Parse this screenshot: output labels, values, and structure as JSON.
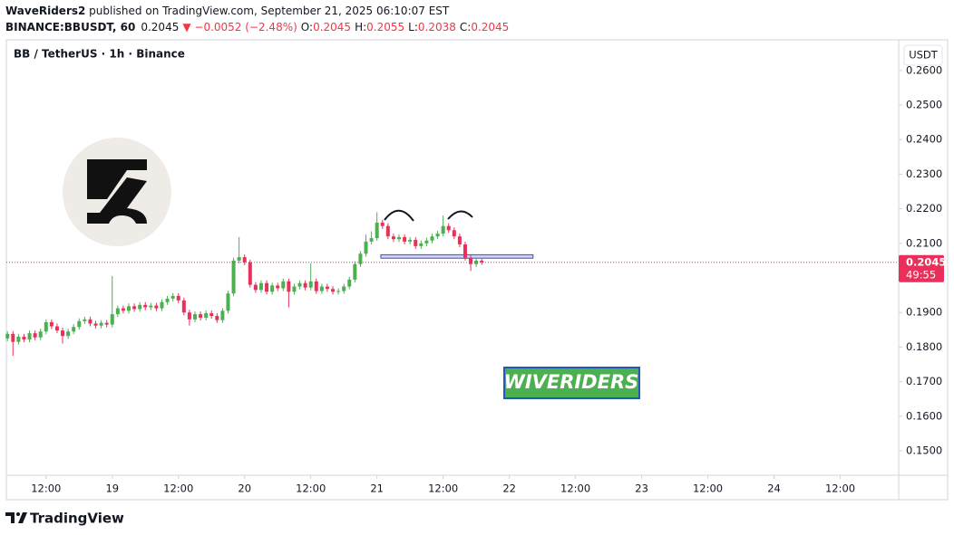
{
  "header": {
    "author": "WaveRiders2",
    "text": " published on TradingView.com, September 21, 2025 06:10:07 EST",
    "symbol": "BINANCE:BBUSDT, 60",
    "price": "0.2045",
    "change": "▼ −0.0052 (−2.48%)",
    "o_label": "O:",
    "o": "0.2045",
    "h_label": "H:",
    "h": "0.2055",
    "l_label": "L:",
    "l": "0.2038",
    "c_label": "C:",
    "c": "0.2045"
  },
  "chart_data": {
    "type": "candlestick",
    "title": "BB / TetherUS · 1h · Binance",
    "currency": "USDT",
    "up_color": "#4caf50",
    "down_color": "#e8305a",
    "x": [
      5,
      6,
      7,
      8,
      9,
      10,
      11,
      12,
      13,
      14,
      15,
      16,
      17,
      18,
      19,
      20,
      21,
      22,
      23,
      24,
      25,
      26,
      27,
      28,
      29,
      30,
      31,
      32,
      33,
      34,
      35,
      36,
      37,
      38,
      39,
      40,
      41,
      42,
      43,
      44,
      45,
      46,
      47,
      48,
      49,
      50,
      51,
      52,
      53,
      54,
      55,
      56,
      57,
      58,
      59,
      60,
      61,
      62,
      63,
      64,
      65,
      66,
      67,
      68,
      69,
      70,
      71,
      72,
      73,
      74,
      75,
      76,
      77,
      78,
      79,
      80,
      81,
      82,
      83,
      84,
      85,
      86,
      87,
      88,
      89,
      90,
      91
    ],
    "open": [
      0.1825,
      0.1838,
      0.1815,
      0.183,
      0.1822,
      0.184,
      0.1828,
      0.1845,
      0.1872,
      0.186,
      0.1848,
      0.1832,
      0.1845,
      0.1858,
      0.1875,
      0.188,
      0.1868,
      0.1862,
      0.187,
      0.1865,
      0.1895,
      0.1912,
      0.1905,
      0.1918,
      0.191,
      0.1922,
      0.1915,
      0.192,
      0.1912,
      0.193,
      0.194,
      0.1948,
      0.1935,
      0.19,
      0.188,
      0.1895,
      0.1885,
      0.1898,
      0.189,
      0.1878,
      0.1905,
      0.1955,
      0.205,
      0.206,
      0.2045,
      0.198,
      0.1965,
      0.1985,
      0.196,
      0.1978,
      0.197,
      0.199,
      0.196,
      0.1975,
      0.1985,
      0.1972,
      0.199,
      0.1962,
      0.1975,
      0.1968,
      0.196,
      0.1962,
      0.1975,
      0.1995,
      0.204,
      0.207,
      0.2105,
      0.2115,
      0.216,
      0.215,
      0.212,
      0.2112,
      0.2118,
      0.2105,
      0.211,
      0.2092,
      0.21,
      0.2108,
      0.212,
      0.2128,
      0.215,
      0.2138,
      0.212,
      0.2097,
      0.2058,
      0.204,
      0.205
    ],
    "high": [
      0.1846,
      0.1846,
      0.1838,
      0.1838,
      0.1848,
      0.1848,
      0.1853,
      0.188,
      0.188,
      0.1868,
      0.1856,
      0.1853,
      0.1866,
      0.1883,
      0.1888,
      0.1888,
      0.1876,
      0.1878,
      0.1878,
      0.2005,
      0.192,
      0.192,
      0.1926,
      0.1926,
      0.193,
      0.193,
      0.1928,
      0.1928,
      0.1938,
      0.1948,
      0.1956,
      0.1956,
      0.1943,
      0.1908,
      0.1903,
      0.1903,
      0.1906,
      0.1906,
      0.1898,
      0.1913,
      0.1963,
      0.2058,
      0.2118,
      0.2068,
      0.2053,
      0.1988,
      0.1993,
      0.1993,
      0.1986,
      0.1986,
      0.1998,
      0.1998,
      0.1983,
      0.1993,
      0.1993,
      0.2042,
      0.1998,
      0.1983,
      0.1983,
      0.1976,
      0.197,
      0.1983,
      0.2003,
      0.2048,
      0.2078,
      0.2125,
      0.2135,
      0.219,
      0.2168,
      0.2158,
      0.2128,
      0.2126,
      0.2126,
      0.2118,
      0.2118,
      0.2108,
      0.2116,
      0.2128,
      0.2136,
      0.218,
      0.2158,
      0.2146,
      0.2128,
      0.2105,
      0.2066,
      0.2058,
      0.2055
    ],
    "low": [
      0.1817,
      0.1775,
      0.1807,
      0.1814,
      0.1814,
      0.182,
      0.182,
      0.1837,
      0.1852,
      0.184,
      0.181,
      0.1824,
      0.1837,
      0.185,
      0.1867,
      0.186,
      0.1854,
      0.1854,
      0.1857,
      0.1857,
      0.1887,
      0.1897,
      0.1897,
      0.1902,
      0.1902,
      0.1907,
      0.1907,
      0.1904,
      0.1904,
      0.1922,
      0.1932,
      0.1927,
      0.1892,
      0.1862,
      0.1872,
      0.1877,
      0.1877,
      0.1882,
      0.187,
      0.187,
      0.1897,
      0.1947,
      0.2042,
      0.2037,
      0.1972,
      0.1957,
      0.1957,
      0.1952,
      0.1952,
      0.1962,
      0.1962,
      0.1915,
      0.1952,
      0.1967,
      0.1964,
      0.1964,
      0.1954,
      0.1954,
      0.196,
      0.1952,
      0.1952,
      0.1954,
      0.1967,
      0.1987,
      0.2032,
      0.2062,
      0.2097,
      0.2107,
      0.2142,
      0.2112,
      0.2104,
      0.2104,
      0.2097,
      0.2097,
      0.2084,
      0.2084,
      0.2092,
      0.21,
      0.2112,
      0.212,
      0.213,
      0.2112,
      0.2089,
      0.205,
      0.202,
      0.2032,
      0.2038
    ],
    "close": [
      0.1838,
      0.1815,
      0.183,
      0.1822,
      0.184,
      0.1828,
      0.1845,
      0.1872,
      0.186,
      0.1848,
      0.1832,
      0.1845,
      0.1858,
      0.1875,
      0.188,
      0.1868,
      0.1862,
      0.187,
      0.1865,
      0.1895,
      0.1912,
      0.1905,
      0.1918,
      0.191,
      0.1922,
      0.1915,
      0.192,
      0.1912,
      0.193,
      0.194,
      0.1948,
      0.1935,
      0.19,
      0.188,
      0.1895,
      0.1885,
      0.1898,
      0.189,
      0.1878,
      0.1905,
      0.1955,
      0.205,
      0.206,
      0.2045,
      0.198,
      0.1965,
      0.1985,
      0.196,
      0.1978,
      0.197,
      0.199,
      0.196,
      0.1975,
      0.1985,
      0.1972,
      0.199,
      0.1962,
      0.1975,
      0.1968,
      0.196,
      0.1962,
      0.1975,
      0.1995,
      0.204,
      0.207,
      0.2105,
      0.2115,
      0.216,
      0.215,
      0.212,
      0.2112,
      0.2118,
      0.2105,
      0.211,
      0.2092,
      0.21,
      0.2108,
      0.212,
      0.2128,
      0.215,
      0.2138,
      0.212,
      0.2097,
      0.2058,
      0.204,
      0.205,
      0.2045
    ],
    "xlim": [
      4.8,
      166.6
    ],
    "xticks": [
      {
        "value": 12,
        "label": "12:00"
      },
      {
        "value": 24,
        "label": "19"
      },
      {
        "value": 36,
        "label": "12:00"
      },
      {
        "value": 48,
        "label": "20"
      },
      {
        "value": 60,
        "label": "12:00"
      },
      {
        "value": 72,
        "label": "21"
      },
      {
        "value": 84,
        "label": "12:00"
      },
      {
        "value": 96,
        "label": "22"
      },
      {
        "value": 108,
        "label": "12:00"
      },
      {
        "value": 120,
        "label": "23"
      },
      {
        "value": 132,
        "label": "12:00"
      },
      {
        "value": 144,
        "label": "24"
      },
      {
        "value": 156,
        "label": "12:00"
      }
    ],
    "ylim": [
      0.14293,
      0.26885
    ],
    "yticks": [
      {
        "value": 0.15,
        "label": "0.1500"
      },
      {
        "value": 0.16,
        "label": "0.1600"
      },
      {
        "value": 0.17,
        "label": "0.1700"
      },
      {
        "value": 0.18,
        "label": "0.1800"
      },
      {
        "value": 0.19,
        "label": "0.1900"
      },
      {
        "value": 0.21,
        "label": "0.2100"
      },
      {
        "value": 0.22,
        "label": "0.2200"
      },
      {
        "value": 0.23,
        "label": "0.2300"
      },
      {
        "value": 0.24,
        "label": "0.2400"
      },
      {
        "value": 0.25,
        "label": "0.2500"
      },
      {
        "value": 0.26,
        "label": "0.2600"
      }
    ],
    "grid": false,
    "last_price": 0.2045,
    "countdown": "49:55",
    "zone": {
      "low": 0.2057,
      "high": 0.2067,
      "x": [
        72.7,
        100.3
      ]
    },
    "watermark": "WIVERIDERS"
  },
  "footer": "TradingView"
}
